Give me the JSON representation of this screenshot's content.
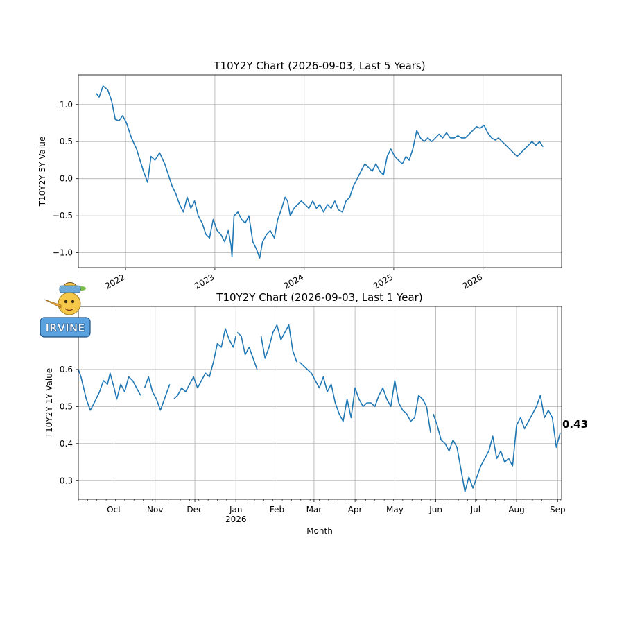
{
  "colors": {
    "series": "#1f77b4",
    "grid": "#b0b0b0"
  },
  "logo": {
    "name": "mascot-logo",
    "text": "IRVINE"
  },
  "chart_data": [
    {
      "type": "line",
      "title": "T10Y2Y Chart (2026-09-03, Last 5 Years)",
      "ylabel": "T10Y2Y 5Y Value",
      "xlabel": "",
      "grid": true,
      "xlim": [
        "2021-06-22",
        "2026-11-18"
      ],
      "ylim": [
        -1.2,
        1.4
      ],
      "yticks": [
        1.0,
        0.5,
        0.0,
        -0.5,
        -1.0
      ],
      "ytick_labels": [
        "1.0",
        "0.5",
        "0.0",
        "−0.5",
        "−1.0"
      ],
      "xticks": [
        {
          "date": "2022-01-01",
          "label": "2022"
        },
        {
          "date": "2023-01-01",
          "label": "2023"
        },
        {
          "date": "2024-01-01",
          "label": "2024"
        },
        {
          "date": "2025-01-01",
          "label": "2025"
        },
        {
          "date": "2026-01-01",
          "label": "2026"
        }
      ],
      "series": [
        {
          "x": [
            "2021-09-03",
            "2021-09-15",
            "2021-10-01",
            "2021-10-20",
            "2021-11-05",
            "2021-11-20",
            "2021-12-05",
            "2021-12-20",
            "2022-01-05",
            "2022-01-25",
            "2022-02-15",
            "2022-03-01",
            "2022-03-15",
            "2022-04-01",
            "2022-04-15",
            "2022-05-01",
            "2022-05-20",
            "2022-06-10",
            "2022-06-25",
            "2022-07-10",
            "2022-07-25",
            "2022-08-10",
            "2022-08-25",
            "2022-09-10",
            "2022-09-25",
            "2022-10-10",
            "2022-10-25",
            "2022-11-10",
            "2022-11-25",
            "2022-12-10",
            "2022-12-25",
            "2023-01-10",
            "2023-01-25",
            "2023-02-10",
            "2023-02-25",
            "2023-03-08",
            "2023-03-12",
            "2023-03-20",
            "2023-04-05",
            "2023-04-20",
            "2023-05-05",
            "2023-05-20",
            "2023-06-05",
            "2023-06-20",
            "2023-07-03",
            "2023-07-15",
            "2023-08-01",
            "2023-08-15",
            "2023-09-01",
            "2023-09-15",
            "2023-10-01",
            "2023-10-15",
            "2023-10-25",
            "2023-11-05",
            "2023-11-20",
            "2023-12-05",
            "2023-12-20",
            "2024-01-05",
            "2024-01-20",
            "2024-02-05",
            "2024-02-20",
            "2024-03-05",
            "2024-03-20",
            "2024-04-05",
            "2024-04-20",
            "2024-05-05",
            "2024-05-20",
            "2024-06-05",
            "2024-06-20",
            "2024-07-05",
            "2024-07-20",
            "2024-08-05",
            "2024-08-20",
            "2024-09-05",
            "2024-09-20",
            "2024-10-05",
            "2024-10-20",
            "2024-11-05",
            "2024-11-20",
            "2024-12-05",
            "2024-12-20",
            "2025-01-05",
            "2025-01-20",
            "2025-02-05",
            "2025-02-20",
            "2025-03-05",
            "2025-03-20",
            "2025-04-05",
            "2025-04-20",
            "2025-05-05",
            "2025-05-20",
            "2025-06-05",
            "2025-06-20",
            "2025-07-05",
            "2025-07-20",
            "2025-08-05",
            "2025-08-20",
            "2025-09-05",
            "2025-09-20",
            "2025-10-05",
            "2025-10-20",
            "2025-11-05",
            "2025-11-20",
            "2025-12-05",
            "2025-12-20",
            "2026-01-05",
            "2026-01-20",
            "2026-02-05",
            "2026-02-20",
            "2026-03-05",
            "2026-03-20",
            "2026-04-05",
            "2026-04-20",
            "2026-05-05",
            "2026-05-20",
            "2026-06-05",
            "2026-06-20",
            "2026-07-05",
            "2026-07-20",
            "2026-08-05",
            "2026-08-20",
            "2026-09-03"
          ],
          "y": [
            1.15,
            1.1,
            1.25,
            1.2,
            1.05,
            0.8,
            0.78,
            0.85,
            0.75,
            0.55,
            0.4,
            0.25,
            0.1,
            -0.05,
            0.3,
            0.25,
            0.35,
            0.2,
            0.05,
            -0.1,
            -0.2,
            -0.35,
            -0.45,
            -0.25,
            -0.4,
            -0.3,
            -0.5,
            -0.6,
            -0.75,
            -0.8,
            -0.55,
            -0.7,
            -0.75,
            -0.85,
            -0.7,
            -0.9,
            -1.05,
            -0.5,
            -0.45,
            -0.55,
            -0.6,
            -0.5,
            -0.85,
            -0.95,
            -1.07,
            -0.85,
            -0.75,
            -0.7,
            -0.8,
            -0.55,
            -0.4,
            -0.25,
            -0.3,
            -0.5,
            -0.4,
            -0.35,
            -0.3,
            -0.35,
            -0.4,
            -0.3,
            -0.4,
            -0.35,
            -0.45,
            -0.35,
            -0.4,
            -0.3,
            -0.42,
            -0.45,
            -0.3,
            -0.25,
            -0.1,
            0.0,
            0.1,
            0.2,
            0.15,
            0.1,
            0.2,
            0.1,
            0.05,
            0.3,
            0.4,
            0.3,
            0.25,
            0.2,
            0.3,
            0.25,
            0.4,
            0.65,
            0.55,
            0.5,
            0.55,
            0.5,
            0.55,
            0.6,
            0.55,
            0.62,
            0.55,
            0.55,
            0.58,
            0.55,
            0.55,
            0.6,
            0.65,
            0.7,
            0.68,
            0.72,
            0.62,
            0.55,
            0.52,
            0.55,
            0.5,
            0.45,
            0.4,
            0.35,
            0.3,
            0.35,
            0.4,
            0.45,
            0.5,
            0.45,
            0.5,
            0.43
          ]
        }
      ]
    },
    {
      "type": "line",
      "title": "T10Y2Y Chart (2026-09-03, Last 1 Year)",
      "ylabel": "T10Y2Y 1Y Value",
      "xlabel": "Month",
      "grid": true,
      "xlim": [
        "2025-09-04",
        "2026-09-04"
      ],
      "ylim": [
        0.25,
        0.77
      ],
      "yticks": [
        0.3,
        0.4,
        0.5,
        0.6
      ],
      "ytick_labels": [
        "0.3",
        "0.4",
        "0.5",
        "0.6"
      ],
      "xticks": [
        {
          "date": "2025-10-01",
          "label": "Oct"
        },
        {
          "date": "2025-11-01",
          "label": "Nov"
        },
        {
          "date": "2025-12-01",
          "label": "Dec"
        },
        {
          "date": "2026-01-01",
          "label": "Jan"
        },
        {
          "date": "2026-02-01",
          "label": "Feb"
        },
        {
          "date": "2026-03-01",
          "label": "Mar"
        },
        {
          "date": "2026-04-01",
          "label": "Apr"
        },
        {
          "date": "2026-05-01",
          "label": "May"
        },
        {
          "date": "2026-06-01",
          "label": "Jun"
        },
        {
          "date": "2026-07-01",
          "label": "Jul"
        },
        {
          "date": "2026-08-01",
          "label": "Aug"
        },
        {
          "date": "2026-09-01",
          "label": "Sep"
        }
      ],
      "year_label": {
        "date": "2026-01-01",
        "label": "2026"
      },
      "last_value_label": "0.43",
      "series": [
        {
          "segments": [
            {
              "x": [
                "2025-09-04",
                "2025-09-06",
                "2025-09-10",
                "2025-09-13",
                "2025-09-16",
                "2025-09-20",
                "2025-09-23",
                "2025-09-26",
                "2025-09-28",
                "2025-10-01",
                "2025-10-03",
                "2025-10-06",
                "2025-10-09",
                "2025-10-12",
                "2025-10-15",
                "2025-10-18",
                "2025-10-21"
              ],
              "y": [
                0.6,
                0.58,
                0.52,
                0.49,
                0.51,
                0.54,
                0.57,
                0.56,
                0.59,
                0.55,
                0.52,
                0.56,
                0.54,
                0.58,
                0.57,
                0.55,
                0.53
              ]
            },
            {
              "x": [
                "2025-10-24",
                "2025-10-27",
                "2025-10-30",
                "2025-11-02",
                "2025-11-05",
                "2025-11-08",
                "2025-11-10",
                "2025-11-12"
              ],
              "y": [
                0.55,
                0.58,
                0.54,
                0.52,
                0.49,
                0.52,
                0.54,
                0.56
              ]
            },
            {
              "x": [
                "2025-11-15",
                "2025-11-18",
                "2025-11-21",
                "2025-11-24",
                "2025-11-27",
                "2025-11-30",
                "2025-12-03",
                "2025-12-06",
                "2025-12-09",
                "2025-12-12",
                "2025-12-15",
                "2025-12-18",
                "2025-12-21",
                "2025-12-24",
                "2025-12-27",
                "2025-12-30",
                "2026-01-01"
              ],
              "y": [
                0.52,
                0.53,
                0.55,
                0.54,
                0.56,
                0.58,
                0.55,
                0.57,
                0.59,
                0.58,
                0.62,
                0.67,
                0.66,
                0.71,
                0.68,
                0.66,
                0.69
              ]
            },
            {
              "x": [
                "2026-01-02",
                "2026-01-05",
                "2026-01-08",
                "2026-01-11",
                "2026-01-14",
                "2026-01-17"
              ],
              "y": [
                0.7,
                0.69,
                0.64,
                0.66,
                0.63,
                0.6
              ]
            },
            {
              "x": [
                "2026-01-20",
                "2026-01-23",
                "2026-01-26",
                "2026-01-29",
                "2026-02-01",
                "2026-02-04",
                "2026-02-07",
                "2026-02-10",
                "2026-02-13",
                "2026-02-16"
              ],
              "y": [
                0.69,
                0.63,
                0.66,
                0.7,
                0.72,
                0.68,
                0.7,
                0.72,
                0.65,
                0.62
              ]
            },
            {
              "x": [
                "2026-02-18",
                "2026-02-21",
                "2026-02-24",
                "2026-02-27",
                "2026-03-02",
                "2026-03-05",
                "2026-03-08",
                "2026-03-11",
                "2026-03-14",
                "2026-03-17",
                "2026-03-20",
                "2026-03-23",
                "2026-03-26",
                "2026-03-29",
                "2026-04-01",
                "2026-04-04",
                "2026-04-07",
                "2026-04-10",
                "2026-04-13",
                "2026-04-16",
                "2026-04-19",
                "2026-04-22",
                "2026-04-25",
                "2026-04-28",
                "2026-05-01",
                "2026-05-04",
                "2026-05-07",
                "2026-05-10",
                "2026-05-13",
                "2026-05-16",
                "2026-05-19",
                "2026-05-22",
                "2026-05-25",
                "2026-05-28"
              ],
              "y": [
                0.62,
                0.61,
                0.6,
                0.59,
                0.57,
                0.55,
                0.58,
                0.54,
                0.56,
                0.51,
                0.48,
                0.46,
                0.52,
                0.47,
                0.55,
                0.52,
                0.5,
                0.51,
                0.51,
                0.5,
                0.53,
                0.55,
                0.52,
                0.5,
                0.57,
                0.51,
                0.49,
                0.48,
                0.46,
                0.47,
                0.53,
                0.52,
                0.5,
                0.43
              ]
            },
            {
              "x": [
                "2026-05-30",
                "2026-06-02",
                "2026-06-05",
                "2026-06-08",
                "2026-06-11",
                "2026-06-14",
                "2026-06-17",
                "2026-06-20",
                "2026-06-23",
                "2026-06-26",
                "2026-06-29",
                "2026-07-02",
                "2026-07-05",
                "2026-07-08",
                "2026-07-11",
                "2026-07-14",
                "2026-07-17",
                "2026-07-20",
                "2026-07-23",
                "2026-07-26",
                "2026-07-29",
                "2026-08-01",
                "2026-08-04",
                "2026-08-07",
                "2026-08-10",
                "2026-08-13",
                "2026-08-16",
                "2026-08-19",
                "2026-08-22",
                "2026-08-25",
                "2026-08-28",
                "2026-08-31",
                "2026-09-03"
              ],
              "y": [
                0.48,
                0.45,
                0.41,
                0.4,
                0.38,
                0.41,
                0.39,
                0.33,
                0.27,
                0.31,
                0.28,
                0.31,
                0.34,
                0.36,
                0.38,
                0.42,
                0.36,
                0.38,
                0.35,
                0.36,
                0.34,
                0.45,
                0.47,
                0.44,
                0.46,
                0.48,
                0.5,
                0.53,
                0.47,
                0.49,
                0.47,
                0.39,
                0.43
              ]
            }
          ]
        }
      ]
    }
  ]
}
